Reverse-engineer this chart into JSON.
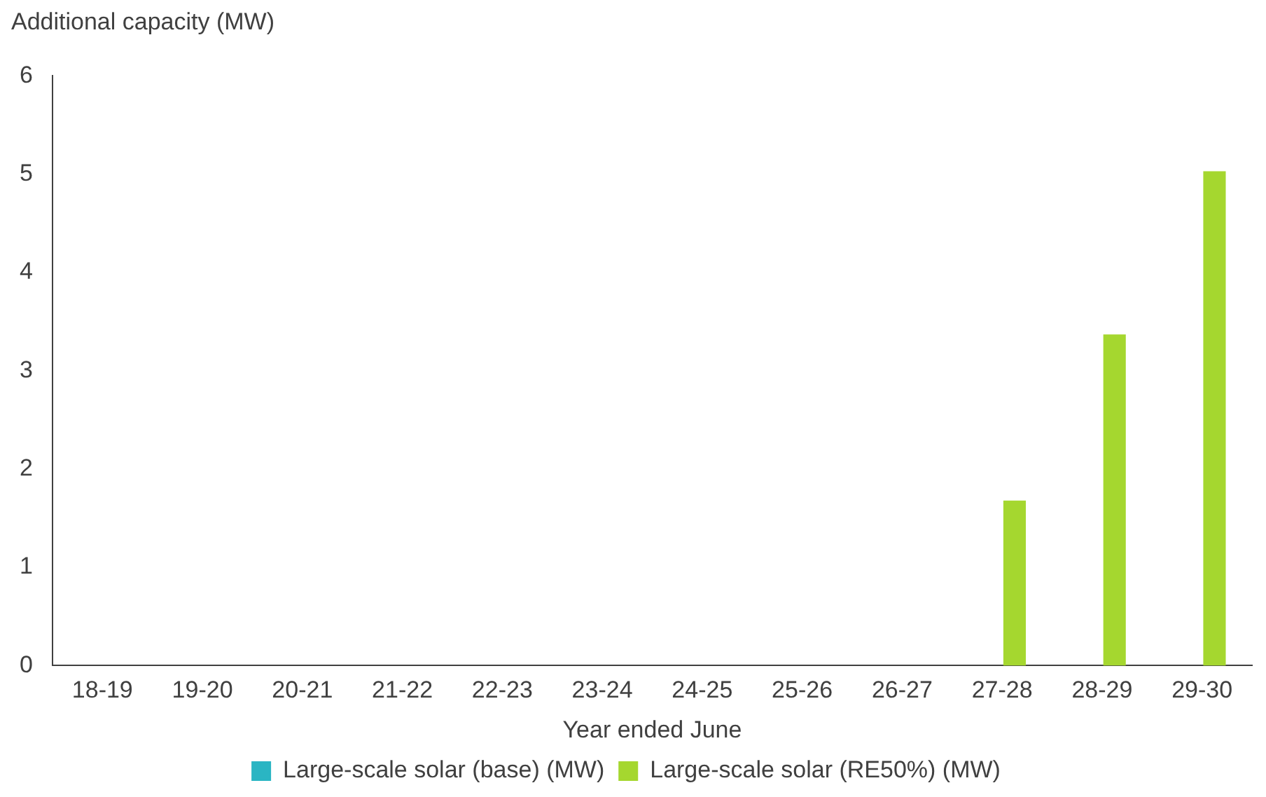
{
  "chart_data": {
    "type": "bar",
    "ylabel": "Additional capacity (MW)",
    "xlabel": "Year ended June",
    "categories": [
      "18-19",
      "19-20",
      "20-21",
      "21-22",
      "22-23",
      "23-24",
      "24-25",
      "25-26",
      "26-27",
      "27-28",
      "28-29",
      "29-30"
    ],
    "series": [
      {
        "name": "Large-scale solar (base) (MW)",
        "color": "#2ab5c3",
        "values": [
          0,
          0,
          0,
          0,
          0,
          0,
          0,
          0,
          0,
          0,
          0,
          0
        ]
      },
      {
        "name": "Large-scale solar (RE50%) (MW)",
        "color": "#a5d72f",
        "values": [
          0,
          0,
          0,
          0,
          0,
          0,
          0,
          0,
          0,
          1.68,
          3.37,
          5.03
        ]
      }
    ],
    "ylim": [
      0,
      6
    ],
    "yticks": [
      0,
      1,
      2,
      3,
      4,
      5,
      6
    ],
    "grid": false,
    "legend": "bottom"
  }
}
